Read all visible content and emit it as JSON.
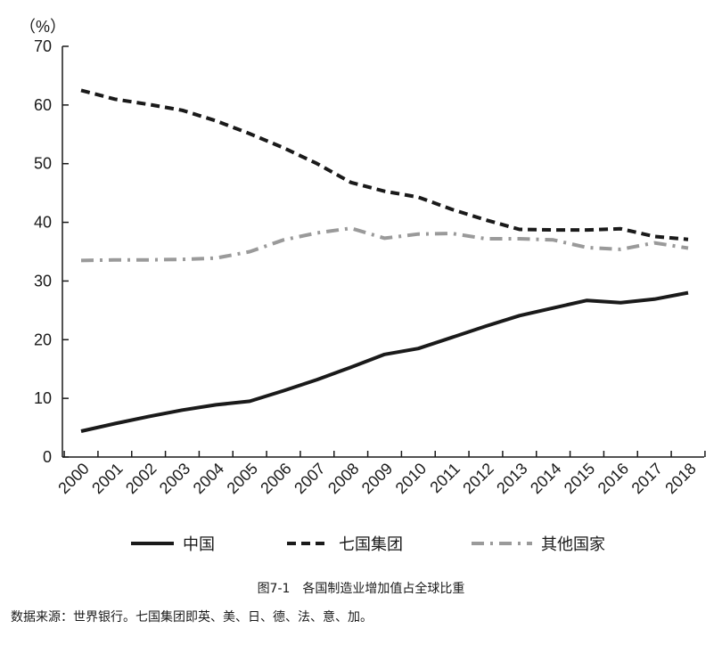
{
  "chart_data": {
    "type": "line",
    "ylabel_unit": "（%）",
    "ylim": [
      0,
      70
    ],
    "yticks": [
      0,
      10,
      20,
      30,
      40,
      50,
      60,
      70
    ],
    "categories": [
      "2000",
      "2001",
      "2002",
      "2003",
      "2004",
      "2005",
      "2006",
      "2007",
      "2008",
      "2009",
      "2010",
      "2011",
      "2012",
      "2013",
      "2014",
      "2015",
      "2016",
      "2017",
      "2018"
    ],
    "series": [
      {
        "name": "中国",
        "style": "solid",
        "color": "#1a1a1a",
        "values": [
          4.4,
          5.7,
          6.9,
          8.0,
          8.9,
          9.5,
          11.3,
          13.2,
          15.3,
          17.5,
          18.5,
          20.4,
          22.3,
          24.1,
          25.4,
          26.7,
          26.3,
          26.9,
          28.0
        ]
      },
      {
        "name": "七国集团",
        "style": "dashed",
        "color": "#1a1a1a",
        "values": [
          62.5,
          61.0,
          60.1,
          59.1,
          57.3,
          55.1,
          52.7,
          50.0,
          46.8,
          45.3,
          44.3,
          42.2,
          40.4,
          38.8,
          38.7,
          38.7,
          38.9,
          37.6,
          37.1
        ]
      },
      {
        "name": "其他国家",
        "style": "dashdot",
        "color": "#9a9a9a",
        "values": [
          33.5,
          33.6,
          33.6,
          33.7,
          33.9,
          35.0,
          37.0,
          38.2,
          39.0,
          37.3,
          38.0,
          38.1,
          37.2,
          37.2,
          37.0,
          35.7,
          35.4,
          36.5,
          35.6
        ]
      }
    ],
    "legend": [
      "中国",
      "七国集团",
      "其他国家"
    ],
    "legend_position": "bottom",
    "grid": false
  },
  "caption": "图7-1　各国制造业增加值占全球比重",
  "source": "数据来源：世界银行。七国集团即英、美、日、德、法、意、加。"
}
